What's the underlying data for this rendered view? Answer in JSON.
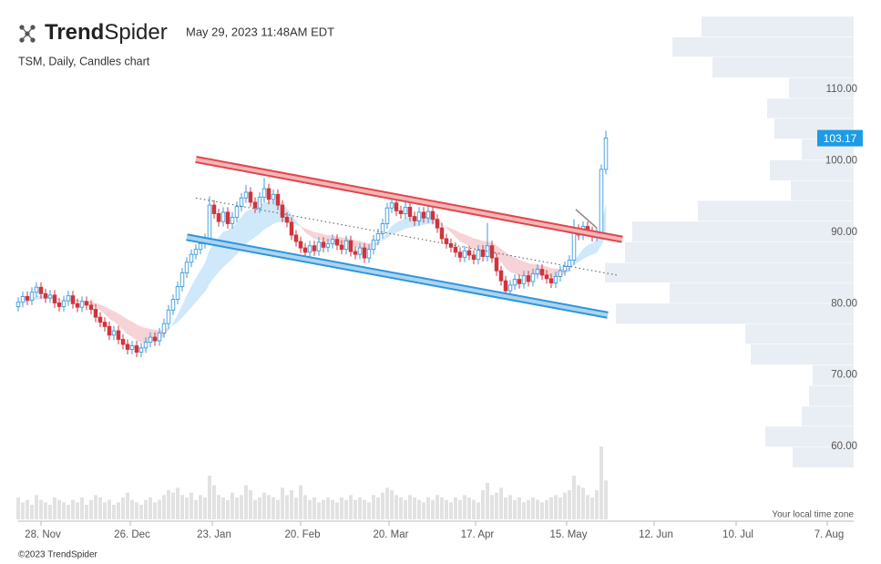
{
  "logo": {
    "bold": "Trend",
    "light": "Spider"
  },
  "timestamp": "May 29, 2023 11:48AM EDT",
  "chart_data": {
    "type": "candlestick",
    "subtitle": "TSM, Daily, Candles chart",
    "timezone_note": "Your local time zone",
    "copyright": "©2023 TrendSpider",
    "colors": {
      "up": "#3d9ae0",
      "down": "#cf343c",
      "volume": "#e2e2e2",
      "profile": "#e9eef4",
      "price_box": "#1e9be5"
    },
    "open": [
      79.6,
      80.2,
      81.0,
      80.5,
      81.6,
      82.3,
      81.4,
      80.8,
      81.2,
      80.1,
      79.6,
      80.4,
      81.1,
      80.0,
      79.5,
      80.3,
      79.8,
      79.2,
      78.1,
      77.4,
      76.8,
      75.6,
      76.2,
      75.0,
      74.3,
      73.6,
      74.1,
      73.2,
      73.8,
      74.6,
      75.3,
      74.8,
      75.9,
      77.2,
      79.1,
      80.6,
      82.4,
      84.3,
      85.8,
      86.9,
      87.6,
      88.4,
      89.1,
      93.8,
      92.6,
      91.5,
      92.8,
      91.2,
      92.1,
      93.6,
      94.8,
      95.6,
      94.2,
      93.4,
      94.9,
      96.1,
      94.6,
      95.3,
      93.8,
      92.1,
      91.4,
      89.6,
      88.7,
      87.8,
      87.2,
      88.1,
      87.4,
      88.6,
      87.9,
      88.4,
      89.0,
      88.2,
      87.6,
      88.8,
      87.3,
      86.9,
      87.8,
      86.4,
      87.6,
      88.9,
      89.8,
      91.2,
      93.4,
      94.1,
      93.0,
      92.6,
      93.5,
      92.2,
      91.6,
      92.8,
      92.0,
      92.9,
      91.8,
      90.6,
      89.1,
      88.4,
      87.9,
      87.2,
      86.5,
      87.4,
      86.8,
      86.2,
      87.5,
      86.6,
      88.1,
      86.4,
      84.6,
      83.2,
      81.8,
      82.6,
      83.4,
      82.8,
      83.9,
      83.1,
      84.2,
      84.8,
      84.0,
      83.5,
      82.9,
      83.8,
      84.6,
      85.2,
      86.1,
      90.4,
      89.6,
      90.8,
      90.1,
      89.4,
      89.9,
      98.8
    ],
    "high": [
      80.9,
      81.7,
      81.7,
      82.3,
      83.0,
      83.0,
      82.1,
      81.9,
      81.9,
      80.8,
      81.1,
      81.8,
      81.8,
      80.7,
      81.0,
      81.0,
      80.5,
      79.9,
      78.8,
      78.1,
      77.5,
      76.9,
      76.9,
      75.7,
      75.0,
      74.8,
      74.8,
      74.5,
      75.3,
      76.0,
      76.0,
      76.6,
      77.9,
      79.8,
      81.3,
      83.1,
      85.0,
      86.5,
      87.6,
      88.3,
      89.1,
      89.8,
      95.0,
      94.5,
      93.3,
      93.5,
      93.5,
      92.8,
      94.3,
      95.5,
      96.6,
      96.3,
      94.9,
      95.6,
      97.6,
      96.8,
      96.0,
      96.0,
      94.5,
      92.8,
      92.1,
      90.3,
      89.4,
      88.5,
      88.8,
      88.8,
      89.3,
      89.3,
      89.1,
      89.7,
      89.7,
      88.9,
      89.5,
      89.5,
      88.0,
      88.5,
      88.5,
      88.3,
      89.6,
      90.5,
      91.9,
      94.1,
      95.3,
      94.8,
      93.7,
      94.6,
      94.2,
      92.9,
      93.5,
      93.5,
      93.6,
      93.6,
      92.5,
      91.3,
      89.8,
      89.1,
      88.6,
      87.9,
      88.1,
      88.1,
      87.5,
      88.2,
      88.2,
      91.3,
      88.8,
      87.1,
      85.3,
      83.9,
      83.3,
      84.1,
      84.1,
      84.6,
      84.6,
      84.9,
      85.5,
      85.5,
      84.7,
      84.2,
      84.5,
      85.3,
      85.9,
      86.8,
      91.8,
      91.1,
      91.5,
      91.5,
      90.8,
      90.6,
      99.5,
      104.2
    ],
    "low": [
      78.9,
      79.5,
      79.8,
      79.8,
      80.9,
      80.7,
      80.1,
      80.1,
      79.4,
      78.9,
      78.9,
      79.7,
      79.3,
      78.8,
      78.8,
      79.1,
      78.5,
      77.4,
      76.7,
      76.1,
      74.9,
      74.9,
      74.3,
      73.6,
      72.9,
      72.9,
      72.5,
      72.5,
      73.1,
      73.9,
      74.1,
      74.1,
      75.2,
      76.5,
      78.4,
      79.9,
      81.7,
      83.6,
      85.1,
      86.2,
      86.9,
      87.7,
      88.4,
      91.9,
      90.8,
      90.8,
      90.5,
      90.5,
      91.4,
      92.9,
      94.1,
      93.5,
      92.7,
      92.7,
      94.2,
      93.9,
      93.9,
      93.1,
      91.4,
      90.7,
      88.9,
      88.0,
      87.1,
      86.5,
      86.5,
      86.7,
      86.7,
      87.2,
      87.2,
      87.7,
      87.5,
      86.9,
      86.9,
      86.6,
      86.2,
      86.2,
      85.7,
      85.7,
      86.9,
      88.2,
      89.1,
      90.5,
      92.7,
      92.3,
      91.9,
      91.9,
      91.5,
      90.9,
      90.9,
      91.3,
      91.3,
      91.1,
      89.9,
      88.4,
      87.7,
      87.2,
      86.5,
      85.8,
      85.8,
      86.1,
      85.5,
      85.5,
      85.9,
      85.9,
      85.7,
      83.9,
      82.5,
      81.1,
      81.1,
      81.9,
      82.1,
      82.1,
      82.4,
      82.4,
      83.5,
      83.3,
      82.8,
      82.2,
      82.2,
      83.1,
      83.9,
      84.5,
      85.4,
      88.9,
      88.9,
      89.4,
      88.7,
      88.7,
      89.2,
      98.1
    ],
    "close": [
      80.2,
      81.0,
      80.5,
      81.6,
      82.3,
      81.4,
      80.8,
      81.2,
      80.1,
      79.6,
      80.4,
      81.1,
      80.0,
      79.5,
      80.3,
      79.8,
      79.2,
      78.1,
      77.4,
      76.8,
      75.6,
      76.2,
      75.0,
      74.3,
      73.6,
      74.1,
      73.2,
      73.8,
      74.6,
      75.3,
      74.8,
      75.9,
      77.2,
      79.1,
      80.6,
      82.4,
      84.3,
      85.8,
      86.9,
      87.6,
      88.4,
      89.1,
      93.8,
      92.6,
      91.5,
      92.8,
      91.2,
      92.1,
      93.6,
      94.8,
      95.6,
      94.2,
      93.4,
      94.9,
      96.1,
      94.6,
      95.3,
      93.8,
      92.1,
      91.4,
      89.6,
      88.7,
      87.8,
      87.2,
      88.1,
      87.4,
      88.6,
      87.9,
      88.4,
      89.0,
      88.2,
      87.6,
      88.8,
      87.3,
      86.9,
      87.8,
      86.4,
      87.6,
      88.9,
      89.8,
      91.2,
      93.4,
      94.1,
      93.0,
      92.6,
      93.5,
      92.2,
      91.6,
      92.8,
      92.0,
      92.9,
      91.8,
      90.6,
      89.1,
      88.4,
      87.9,
      87.2,
      86.5,
      87.4,
      86.8,
      86.2,
      87.5,
      86.6,
      88.1,
      86.4,
      84.6,
      83.2,
      81.8,
      82.6,
      83.4,
      82.8,
      83.9,
      83.1,
      84.2,
      84.8,
      84.0,
      83.5,
      82.9,
      83.8,
      84.6,
      85.2,
      86.1,
      90.4,
      89.6,
      90.8,
      90.1,
      89.4,
      89.9,
      98.8,
      103.17
    ],
    "volume": [
      9,
      7,
      8,
      6,
      10,
      8,
      7,
      6,
      9,
      8,
      7,
      6,
      8,
      7,
      9,
      6,
      8,
      10,
      9,
      7,
      8,
      6,
      7,
      9,
      11,
      8,
      7,
      6,
      8,
      9,
      7,
      8,
      10,
      12,
      11,
      13,
      10,
      9,
      11,
      8,
      10,
      9,
      18,
      14,
      10,
      9,
      8,
      11,
      9,
      10,
      14,
      12,
      8,
      9,
      11,
      10,
      9,
      8,
      13,
      10,
      12,
      9,
      14,
      10,
      8,
      9,
      7,
      8,
      9,
      8,
      7,
      9,
      8,
      10,
      8,
      9,
      8,
      7,
      10,
      9,
      11,
      13,
      12,
      10,
      9,
      8,
      10,
      9,
      8,
      7,
      9,
      8,
      10,
      9,
      8,
      7,
      9,
      8,
      10,
      9,
      8,
      7,
      12,
      15,
      10,
      11,
      13,
      9,
      10,
      8,
      9,
      7,
      8,
      9,
      8,
      7,
      8,
      9,
      10,
      9,
      11,
      12,
      18,
      14,
      13,
      10,
      9,
      12,
      30,
      16
    ],
    "xlim": [
      0,
      183.4
    ],
    "xticks": [
      {
        "value": 5,
        "label": "28. Nov"
      },
      {
        "value": 24.6,
        "label": "26. Dec"
      },
      {
        "value": 42.6,
        "label": "23. Jan"
      },
      {
        "value": 62,
        "label": "20. Feb"
      },
      {
        "value": 81.4,
        "label": "20. Mar"
      },
      {
        "value": 100.4,
        "label": "17. Apr"
      },
      {
        "value": 120.4,
        "label": "15. May"
      },
      {
        "value": 139.6,
        "label": "12. Jun"
      },
      {
        "value": 157.6,
        "label": "10. Jul"
      },
      {
        "value": 177.6,
        "label": "7. Aug"
      }
    ],
    "ylim": [
      49.8,
      120.6
    ],
    "yticks": [
      {
        "value": 60,
        "label": "60.00"
      },
      {
        "value": 70,
        "label": "70.00"
      },
      {
        "value": 80,
        "label": "80.00"
      },
      {
        "value": 90,
        "label": "90.00"
      },
      {
        "value": 100,
        "label": "100.00"
      },
      {
        "value": 110,
        "label": "110.00"
      }
    ],
    "volume_profile": {
      "bins": [
        120.2,
        117.3,
        114.5,
        111.6,
        108.7,
        105.9,
        103.0,
        100.1,
        97.2,
        94.4,
        91.5,
        88.6,
        85.7,
        82.9,
        80.0,
        77.1,
        74.3,
        71.4,
        68.5,
        65.6,
        62.8,
        59.9,
        57.0
      ],
      "values": [
        167,
        199,
        155,
        71,
        95,
        87,
        57,
        92,
        69,
        171,
        243,
        251,
        273,
        202,
        261,
        119,
        113,
        45,
        49,
        57,
        97,
        67
      ]
    },
    "trendlines": [
      {
        "color": "#e0474c",
        "style": "band",
        "x": [
          39,
          132.6
        ],
        "y": [
          100.2,
          89.0
        ]
      },
      {
        "color": "#2f95db",
        "style": "band",
        "x": [
          37,
          129.4
        ],
        "y": [
          89.3,
          78.4
        ]
      },
      {
        "color": "#555555",
        "style": "dotted",
        "x": [
          39,
          131.4
        ],
        "y": [
          94.8,
          84.0
        ]
      },
      {
        "color": "#888888",
        "style": "solid",
        "x": [
          122.4,
          127
        ],
        "y": [
          93.2,
          90.6
        ]
      }
    ]
  }
}
